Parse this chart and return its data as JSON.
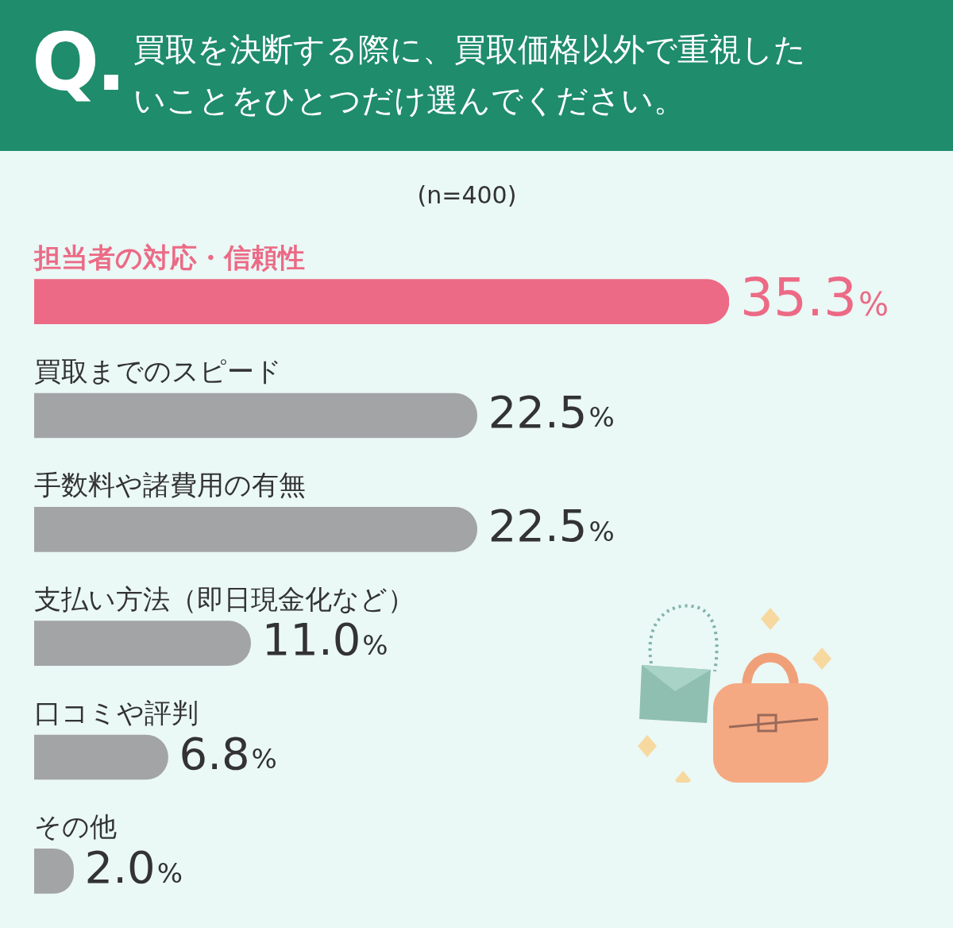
{
  "chart_data": {
    "type": "bar",
    "orientation": "horizontal",
    "title": "買取を決断する際に、買取価格以外で重視したいことをひとつだけ選んでください。",
    "subtitle": "(n=400)",
    "annotations": [
      "Q."
    ],
    "categories": [
      "担当者の対応・信頼性",
      "買取までのスピード",
      "手数料や諸費用の有無",
      "支払い方法（即日現金化など）",
      "口コミや評判",
      "その他"
    ],
    "values": [
      35.3,
      22.5,
      22.5,
      11.0,
      6.8,
      2.0
    ],
    "value_labels": [
      "35.3%",
      "22.5%",
      "22.5%",
      "11.0%",
      "6.8%",
      "2.0%"
    ],
    "colors": [
      "#ec6a85",
      "#a3a4a6",
      "#a3a4a6",
      "#a3a4a6",
      "#a3a4a6",
      "#a3a4a6"
    ]
  }
}
